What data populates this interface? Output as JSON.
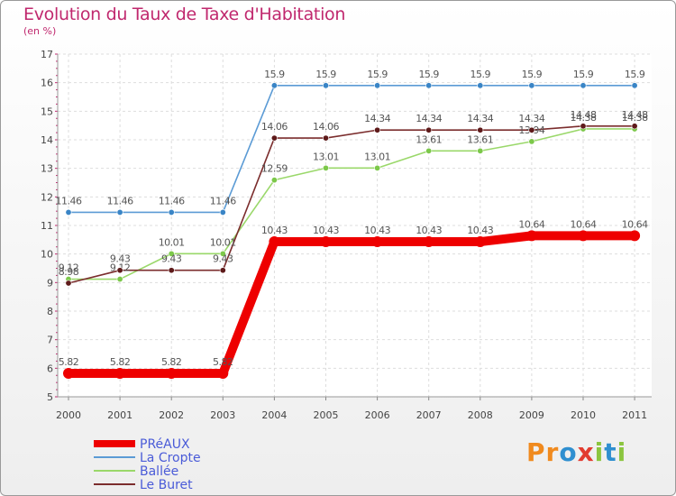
{
  "header": {
    "title": "Evolution du Taux de Taxe d'Habitation",
    "subtitle": "(en %)"
  },
  "logo": {
    "text": "Proxiti",
    "letters": [
      {
        "ch": "P",
        "color": "#f08a1e"
      },
      {
        "ch": "r",
        "color": "#f08a1e"
      },
      {
        "ch": "o",
        "color": "#2f8fd0"
      },
      {
        "ch": "x",
        "color": "#e23c30"
      },
      {
        "ch": "i",
        "color": "#8bc53f"
      },
      {
        "ch": "t",
        "color": "#2f8fd0"
      },
      {
        "ch": "i",
        "color": "#8bc53f"
      }
    ]
  },
  "chart_data": {
    "type": "line",
    "title": "Evolution du Taux de Taxe d'Habitation",
    "ylabel": "(en %)",
    "xlabel": "",
    "x": [
      "2000",
      "2001",
      "2002",
      "2003",
      "2004",
      "2005",
      "2006",
      "2007",
      "2008",
      "2009",
      "2010",
      "2011"
    ],
    "ylim": [
      5,
      17
    ],
    "yticks": [
      "5",
      "6",
      "7",
      "8",
      "9",
      "10",
      "11",
      "12",
      "13",
      "14",
      "15",
      "16",
      "17"
    ],
    "grid": true,
    "legend_position": "bottom-left",
    "series": [
      {
        "name": "La Cropte",
        "color": "#5b9bd5",
        "dot": "#3a85c6",
        "values": [
          11.46,
          11.46,
          11.46,
          11.46,
          15.9,
          15.9,
          15.9,
          15.9,
          15.9,
          15.9,
          15.9,
          15.9
        ],
        "labels": [
          "11.46",
          "11.46",
          "11.46",
          "11.46",
          "15.9",
          "15.9",
          "15.9",
          "15.9",
          "15.9",
          "15.9",
          "15.9",
          "15.9"
        ]
      },
      {
        "name": "Ballée",
        "color": "#9ad86a",
        "dot": "#7cc84a",
        "values": [
          9.12,
          9.12,
          10.01,
          10.01,
          12.59,
          13.01,
          13.01,
          13.61,
          13.61,
          13.94,
          14.38,
          14.38
        ],
        "labels": [
          "9.12",
          "9.12",
          "10.01",
          "10.01",
          "12.59",
          "13.01",
          "13.01",
          "13.61",
          "13.61",
          "13.94",
          "14.38",
          "14.38"
        ]
      },
      {
        "name": "Le Buret",
        "color": "#7b2d2d",
        "dot": "#5e1a1a",
        "values": [
          8.98,
          9.43,
          9.43,
          9.43,
          14.06,
          14.06,
          14.34,
          14.34,
          14.34,
          14.34,
          14.48,
          14.48
        ],
        "labels": [
          "8.98",
          "9.43",
          "9.43",
          "9.43",
          "14.06",
          "14.06",
          "14.34",
          "14.34",
          "14.34",
          "14.34",
          "14.48",
          "14.48"
        ]
      },
      {
        "name": "PRéAUX",
        "color": "#ee0000",
        "dot": "#ee0000",
        "thick": true,
        "values": [
          5.82,
          5.82,
          5.82,
          5.82,
          10.43,
          10.43,
          10.43,
          10.43,
          10.43,
          10.64,
          10.64,
          10.64
        ],
        "labels": [
          "5.82",
          "5.82",
          "5.82",
          "5.82",
          "10.43",
          "10.43",
          "10.43",
          "10.43",
          "10.43",
          "10.64",
          "10.64",
          "10.64"
        ]
      }
    ],
    "legend_order": [
      "PRéAUX",
      "La Cropte",
      "Ballée",
      "Le Buret"
    ]
  }
}
